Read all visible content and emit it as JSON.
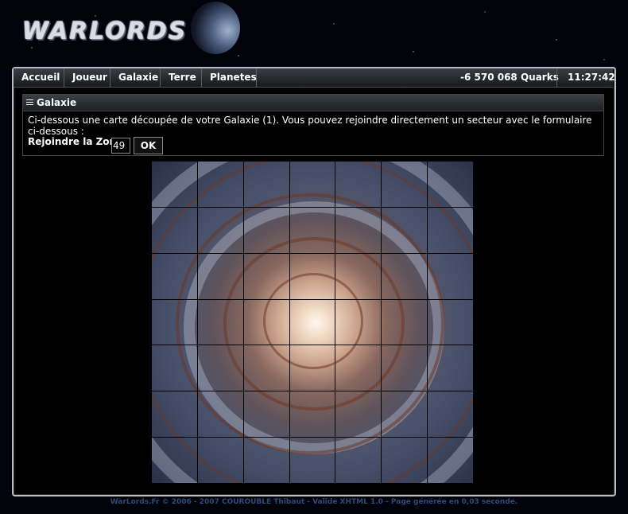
{
  "site": {
    "logo": "WARLORDS"
  },
  "nav": {
    "items": [
      "Accueil",
      "Joueur",
      "Galaxie",
      "Terre",
      "Planetes"
    ],
    "quarks": "-6 570 068 Quarks",
    "clock": "11:27:42"
  },
  "panel": {
    "title": "Galaxie",
    "description": "Ci-dessous une carte découpée de votre Galaxie (1). Vous pouvez rejoindre directement un secteur avec le formulaire ci-dessous :",
    "zone_label": "Rejoindre la Zone :",
    "zone_value": "49",
    "ok_label": "OK"
  },
  "map": {
    "rows": 7,
    "cols": 7
  },
  "footer": {
    "text": "WarLords.Fr © 2006 - 2007 COUROUBLE Thibaut - Valide XHTML 1.0 - Page générée en 0,03 seconde."
  },
  "icons": {
    "panel_icon": "menu-icon",
    "planet": "planet-icon"
  }
}
